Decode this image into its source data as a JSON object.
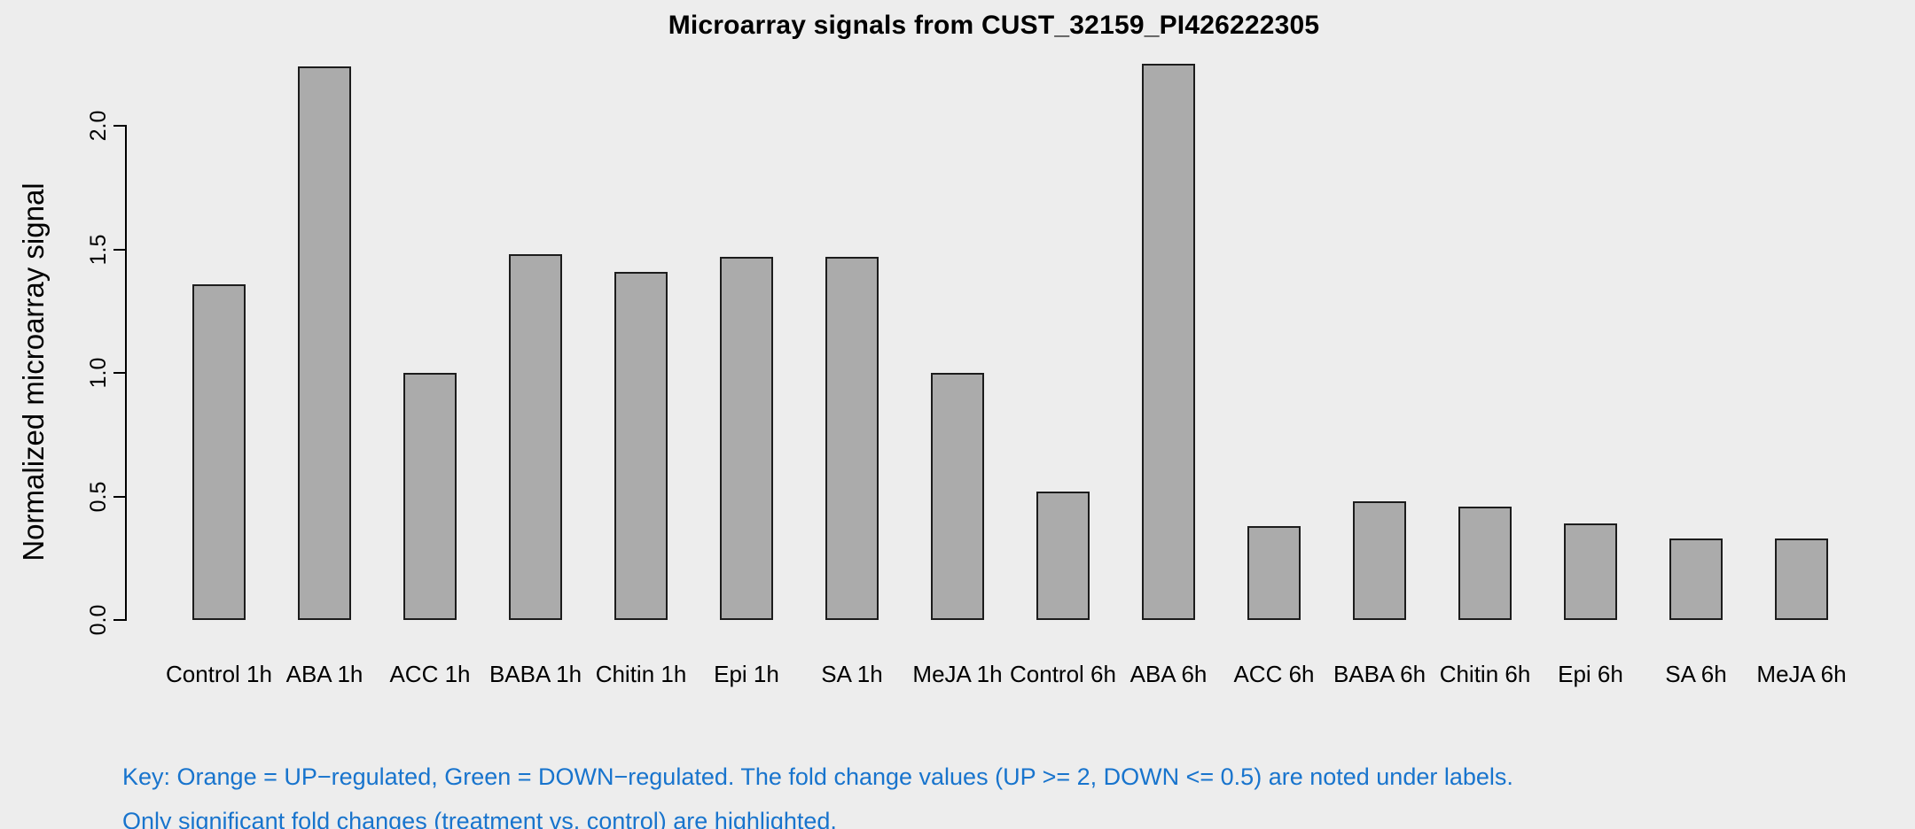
{
  "chart_data": {
    "type": "bar",
    "title": "Microarray signals from CUST_32159_PI426222305",
    "xlabel": "",
    "ylabel": "Normalized microarray signal",
    "categories": [
      "Control 1h",
      "ABA 1h",
      "ACC 1h",
      "BABA 1h",
      "Chitin 1h",
      "Epi 1h",
      "SA 1h",
      "MeJA 1h",
      "Control 6h",
      "ABA 6h",
      "ACC 6h",
      "BABA 6h",
      "Chitin 6h",
      "Epi 6h",
      "SA 6h",
      "MeJA 6h"
    ],
    "values": [
      1.36,
      2.24,
      1.0,
      1.48,
      1.41,
      1.47,
      1.47,
      1.0,
      0.52,
      2.25,
      0.38,
      0.48,
      0.46,
      0.39,
      0.33,
      0.33
    ],
    "ylim": [
      0,
      2.3
    ],
    "yticks": [
      0.0,
      0.5,
      1.0,
      1.5,
      2.0
    ],
    "ytick_labels": [
      "0.0",
      "0.5",
      "1.0",
      "1.5",
      "2.0"
    ],
    "grid": false,
    "legend": "none",
    "bar_fill": "#ABABAB",
    "bar_border": "#1C1C1C"
  },
  "footnote": {
    "line1": "Key: Orange = UP−regulated, Green = DOWN−regulated. The fold change values (UP >= 2, DOWN <= 0.5) are noted under labels.",
    "line2": "Only significant fold changes (treatment vs. control) are highlighted.",
    "color": "#1874CD"
  },
  "colors": {
    "background": "#EDEDED",
    "axis": "#000000",
    "text": "#000000"
  }
}
